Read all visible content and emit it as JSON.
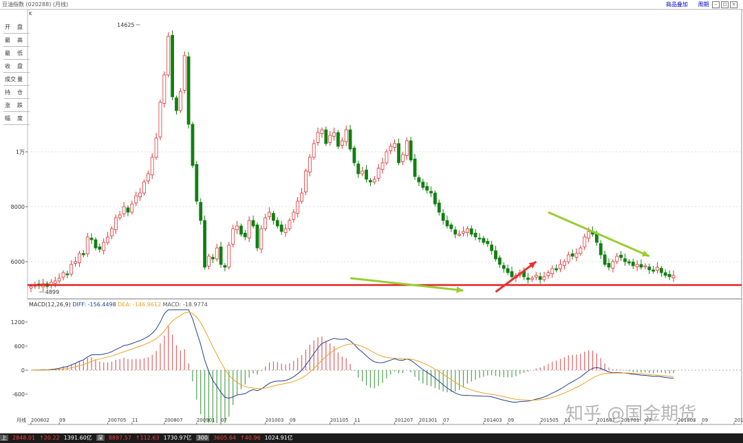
{
  "titlebar": {
    "title": "豆油指数 (020288) (月线)",
    "buttons": [
      "商品叠加",
      "周期"
    ]
  },
  "info_panel": [
    {
      "l": "开",
      "r": "盘"
    },
    {
      "l": "最",
      "r": "高"
    },
    {
      "l": "最",
      "r": "低"
    },
    {
      "l": "收",
      "r": "盘"
    },
    {
      "l": "成交",
      "r": "量"
    },
    {
      "l": "持",
      "r": "仓"
    },
    {
      "l": "涨",
      "r": "跌"
    },
    {
      "l": "幅",
      "r": "度"
    }
  ],
  "chart_data": {
    "type": "candlestick",
    "main": {
      "y_unit_label": "K",
      "y_ticks": [
        {
          "v": 6000,
          "label": "6000"
        },
        {
          "v": 8000,
          "label": "8000"
        },
        {
          "v": 10000,
          "label": "1万"
        }
      ],
      "annotations": [
        {
          "label": "14625",
          "x_index": 27,
          "value": 14625
        },
        {
          "label": "4899",
          "x_index": 2,
          "value": 4899
        }
      ],
      "support_line": 5150,
      "colors": {
        "up": "#e03030",
        "down": "#108010",
        "support": "#e02020",
        "arrow_green": "#9acd32",
        "arrow_red": "#ee3030"
      },
      "arrows": [
        {
          "color": "green",
          "from": [
            79,
            5400
          ],
          "to": [
            107,
            4950
          ]
        },
        {
          "color": "red",
          "from": [
            115,
            4900
          ],
          "to": [
            125,
            6000
          ]
        },
        {
          "color": "green",
          "from": [
            128,
            7800
          ],
          "to": [
            153,
            6200
          ]
        }
      ],
      "closes": [
        5100,
        5150,
        5120,
        5200,
        5100,
        5250,
        5300,
        5400,
        5600,
        5550,
        5900,
        6000,
        6300,
        6250,
        6900,
        6800,
        6500,
        6450,
        6700,
        6900,
        7200,
        7600,
        7700,
        8000,
        7800,
        8100,
        8400,
        8500,
        8900,
        9200,
        9800,
        10500,
        11800,
        12800,
        14200,
        12000,
        11500,
        12200,
        13500,
        11000,
        9500,
        8200,
        7500,
        5800,
        6200,
        6100,
        6500,
        5900,
        5800,
        6600,
        7200,
        7300,
        7000,
        6900,
        7500,
        7300,
        6500,
        7200,
        7600,
        7800,
        7500,
        7300,
        7100,
        7200,
        7500,
        7800,
        8200,
        8500,
        9300,
        9800,
        10300,
        10700,
        10800,
        10300,
        10600,
        10700,
        10200,
        10400,
        10800,
        10100,
        9600,
        9200,
        9300,
        9000,
        8900,
        9000,
        9400,
        9600,
        10000,
        10200,
        10300,
        9600,
        9900,
        10400,
        9700,
        9100,
        8900,
        8700,
        8600,
        8500,
        8100,
        7800,
        7500,
        7300,
        7200,
        7000,
        7000,
        7100,
        7200,
        7000,
        6900,
        6850,
        6700,
        6650,
        6400,
        6100,
        5900,
        5750,
        5600,
        5450,
        5500,
        5600,
        5450,
        5350,
        5400,
        5500,
        5350,
        5450,
        5600,
        5750,
        5700,
        5900,
        6000,
        6250,
        6200,
        6300,
        6500,
        6900,
        7100,
        7000,
        6700,
        6250,
        5900,
        5800,
        6000,
        6200,
        6150,
        6000,
        5950,
        5850,
        5900,
        5800,
        5850,
        5700,
        5650,
        5800,
        5600,
        5500,
        5450,
        5500
      ]
    },
    "macd": {
      "label": "MACD(12,26,9)",
      "diff_label": "DIFF: -156.4498",
      "dea_label": "DEA: -146.9612",
      "macd_label": "MACD: -18.9774",
      "y_ticks": [
        {
          "v": 1200,
          "label": "1200"
        },
        {
          "v": 600,
          "label": "600"
        },
        {
          "v": 0,
          "label": "0"
        },
        {
          "v": -600,
          "label": "-600"
        }
      ],
      "colors": {
        "diff": "#1f3f8f",
        "dea": "#f0a020",
        "bar_up": "#e06060",
        "bar_down": "#50a050"
      }
    },
    "x_ticks": [
      {
        "i": 0,
        "label": "200602"
      },
      {
        "i": 7,
        "label": "09"
      },
      {
        "i": 19,
        "label": "200705"
      },
      {
        "i": 25,
        "label": "11"
      },
      {
        "i": 33,
        "label": "200807"
      },
      {
        "i": 41,
        "label": "200901"
      },
      {
        "i": 47,
        "label": "07"
      },
      {
        "i": 58,
        "label": "201003"
      },
      {
        "i": 64,
        "label": "09"
      },
      {
        "i": 74,
        "label": "201105"
      },
      {
        "i": 80,
        "label": "11"
      },
      {
        "i": 90,
        "label": "201207"
      },
      {
        "i": 96,
        "label": "201301"
      },
      {
        "i": 102,
        "label": "07"
      },
      {
        "i": 112,
        "label": "201403"
      },
      {
        "i": 118,
        "label": "09"
      },
      {
        "i": 126,
        "label": "201505"
      },
      {
        "i": 132,
        "label": "11"
      },
      {
        "i": 140,
        "label": "201607"
      },
      {
        "i": 146,
        "label": "201701"
      },
      {
        "i": 152,
        "label": "07"
      },
      {
        "i": 160,
        "label": "201803"
      },
      {
        "i": 166,
        "label": "09"
      },
      {
        "i": 174,
        "label": "201905"
      }
    ],
    "period_label": "月线"
  },
  "statusbar": {
    "items": [
      {
        "t": "上",
        "c": "st-box"
      },
      {
        "t": "2848.01",
        "c": "st-red"
      },
      {
        "t": "↑20.22",
        "c": "st-red"
      },
      {
        "t": "1391.60亿",
        "c": "st-white"
      },
      {
        "t": "深",
        "c": "st-box"
      },
      {
        "t": "8897.57",
        "c": "st-red"
      },
      {
        "t": "↑112.63",
        "c": "st-red"
      },
      {
        "t": "1730.97亿",
        "c": "st-white"
      },
      {
        "t": "300",
        "c": "st-box"
      },
      {
        "t": "3605.64",
        "c": "st-red"
      },
      {
        "t": "↑40.96",
        "c": "st-red"
      },
      {
        "t": "1024.91亿",
        "c": "st-white"
      }
    ]
  },
  "watermark": "知乎 @国金期货"
}
